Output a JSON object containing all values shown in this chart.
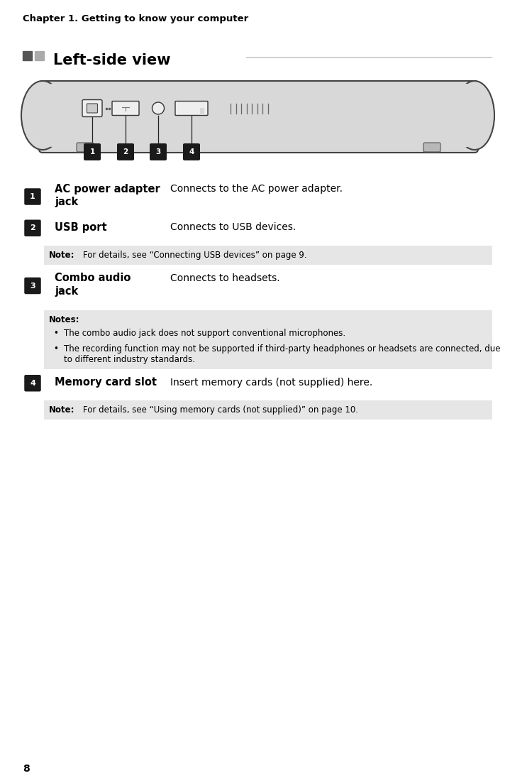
{
  "page_width": 7.19,
  "page_height": 11.03,
  "bg_color": "#ffffff",
  "chapter_title": "Chapter 1. Getting to know your computer",
  "chapter_title_fontsize": 9.5,
  "section_title": "Left-side view",
  "section_title_fontsize": 15,
  "section_squares_colors": [
    "#555555",
    "#aaaaaa"
  ],
  "line_color": "#c8c8c8",
  "page_number": "8",
  "items": [
    {
      "number": "1",
      "label": "AC power adapter\njack",
      "label_lines": 2,
      "description": "Connects to the AC power adapter.",
      "note": null,
      "notes_multi": null
    },
    {
      "number": "2",
      "label": "USB port",
      "label_lines": 1,
      "description": "Connects to USB devices.",
      "note": "Note: For details, see “Connecting USB devices” on page 9.",
      "notes_multi": null
    },
    {
      "number": "3",
      "label": "Combo audio\njack",
      "label_lines": 2,
      "description": "Connects to headsets.",
      "note": null,
      "notes_multi": {
        "title": "Notes:",
        "bullets": [
          "The combo audio jack does not support conventional microphones.",
          "The recording function may not be supported if third-party headphones or headsets are connected, due to different industry standards."
        ]
      }
    },
    {
      "number": "4",
      "label": "Memory card slot",
      "label_lines": 1,
      "description": "Insert memory cards (not supplied) here.",
      "note": "Note: For details, see “Using memory cards (not supplied)” on page 10.",
      "notes_multi": null
    }
  ],
  "note_bg_color": "#e6e6e6",
  "number_badge_color": "#1a1a1a",
  "number_badge_text_color": "#ffffff",
  "label_fontsize": 10.5,
  "desc_fontsize": 10.0,
  "note_fontsize": 8.5,
  "bullet_note_fontsize": 8.5
}
